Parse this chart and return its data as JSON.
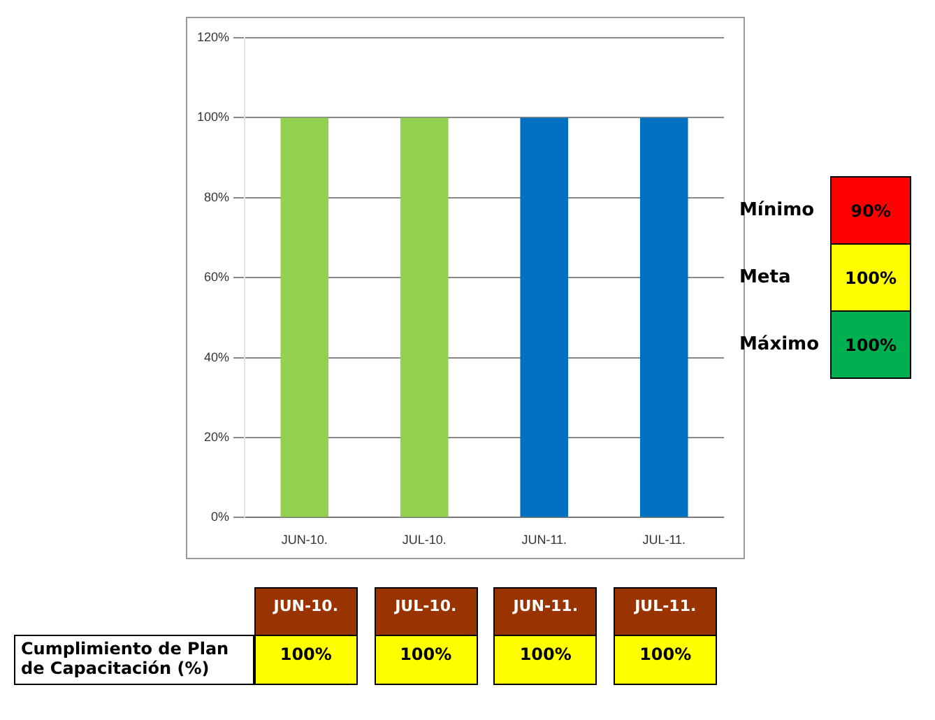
{
  "chart_data": {
    "type": "bar",
    "categories": [
      "JUN-10.",
      "JUL-10.",
      "JUN-11.",
      "JUL-11."
    ],
    "values": [
      100,
      100,
      100,
      100
    ],
    "colors": [
      "#92d050",
      "#92d050",
      "#0070c0",
      "#0070c0"
    ],
    "ylim": [
      0,
      120
    ],
    "yticks": [
      {
        "value": 0,
        "label": "0%"
      },
      {
        "value": 20,
        "label": "20%"
      },
      {
        "value": 40,
        "label": "40%"
      },
      {
        "value": 60,
        "label": "60%"
      },
      {
        "value": 80,
        "label": "80%"
      },
      {
        "value": 100,
        "label": "100%"
      },
      {
        "value": 120,
        "label": "120%"
      }
    ],
    "grid": "y",
    "value_labels": [
      "100%",
      "100%",
      "100%",
      "100%"
    ],
    "annotations": [
      "Mínimo",
      "90%",
      "Meta",
      "100%",
      "Máximo",
      "100%",
      "Cumplimiento de Plan de Capacitación (%)"
    ]
  }
}
